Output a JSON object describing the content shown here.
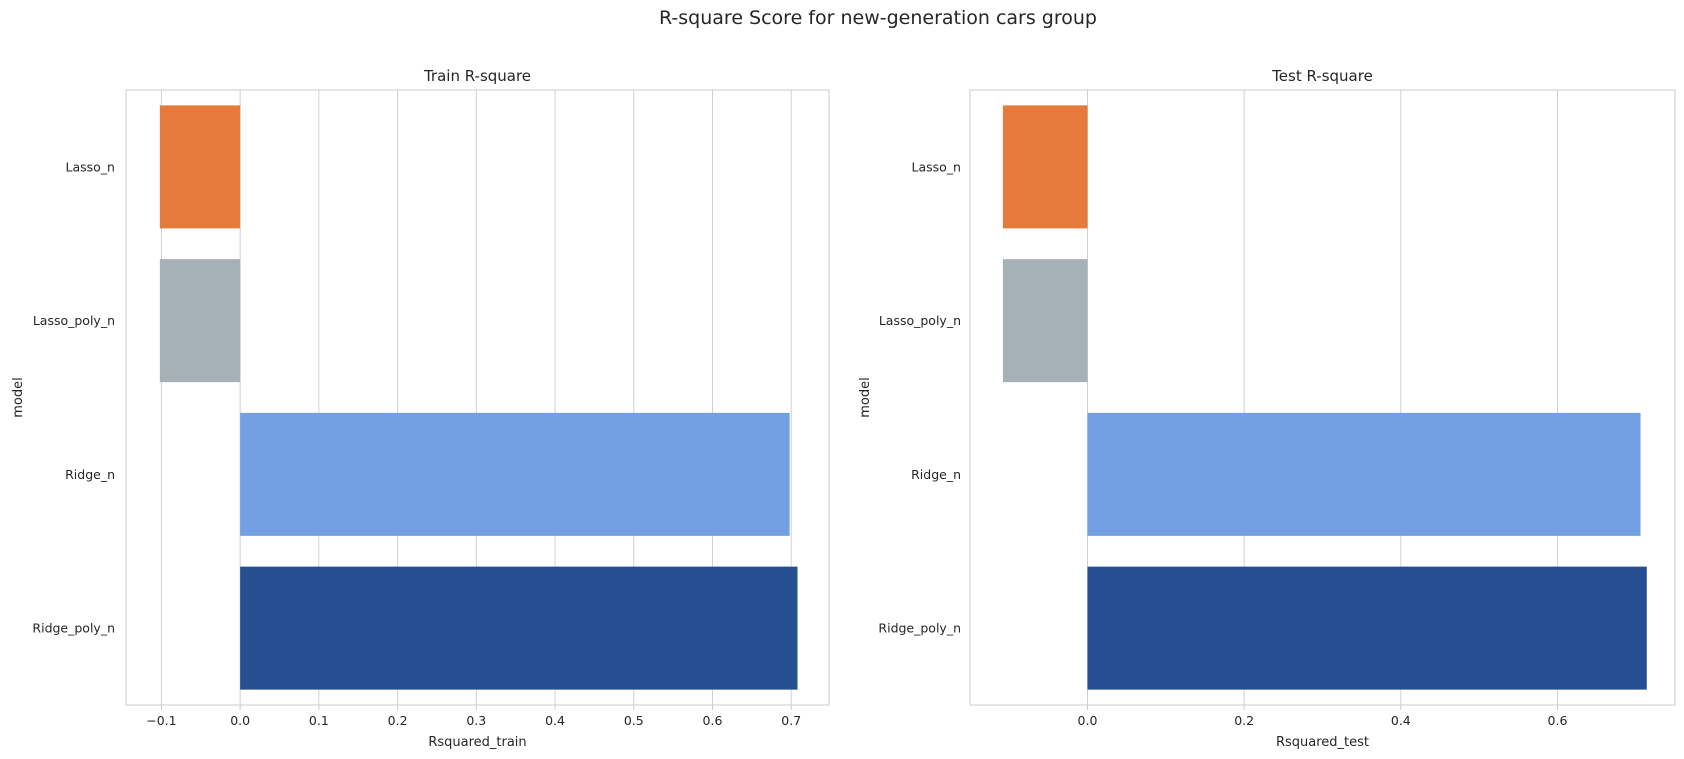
{
  "figure": {
    "suptitle": "R-square Score for new-generation cars group"
  },
  "chart_data": [
    {
      "type": "bar",
      "orientation": "horizontal",
      "title": "Train R-square",
      "xlabel": "Rsquared_train",
      "ylabel": "model",
      "categories": [
        "Lasso_n",
        "Lasso_poly_n",
        "Ridge_n",
        "Ridge_poly_n"
      ],
      "values": [
        -0.102,
        -0.102,
        0.698,
        0.708
      ],
      "colors": [
        "#e57a3a",
        "#a5b1b6",
        "#72a0e3",
        "#264f92"
      ],
      "xlim": [
        -0.145,
        0.748
      ],
      "xticks": [
        -0.1,
        0.0,
        0.1,
        0.2,
        0.3,
        0.4,
        0.5,
        0.6,
        0.7
      ],
      "xtick_labels": [
        "−0.1",
        "0.0",
        "0.1",
        "0.2",
        "0.3",
        "0.4",
        "0.5",
        "0.6",
        "0.7"
      ],
      "grid": true
    },
    {
      "type": "bar",
      "orientation": "horizontal",
      "title": "Test R-square",
      "xlabel": "Rsquared_test",
      "ylabel": "model",
      "categories": [
        "Lasso_n",
        "Lasso_poly_n",
        "Ridge_n",
        "Ridge_poly_n"
      ],
      "values": [
        -0.108,
        -0.108,
        0.706,
        0.714
      ],
      "colors": [
        "#e57a3a",
        "#a5b1b6",
        "#72a0e3",
        "#264f92"
      ],
      "xlim": [
        -0.15,
        0.75
      ],
      "xticks": [
        0.0,
        0.2,
        0.4,
        0.6
      ],
      "xtick_labels": [
        "0.0",
        "0.2",
        "0.4",
        "0.6"
      ],
      "grid": true
    }
  ]
}
